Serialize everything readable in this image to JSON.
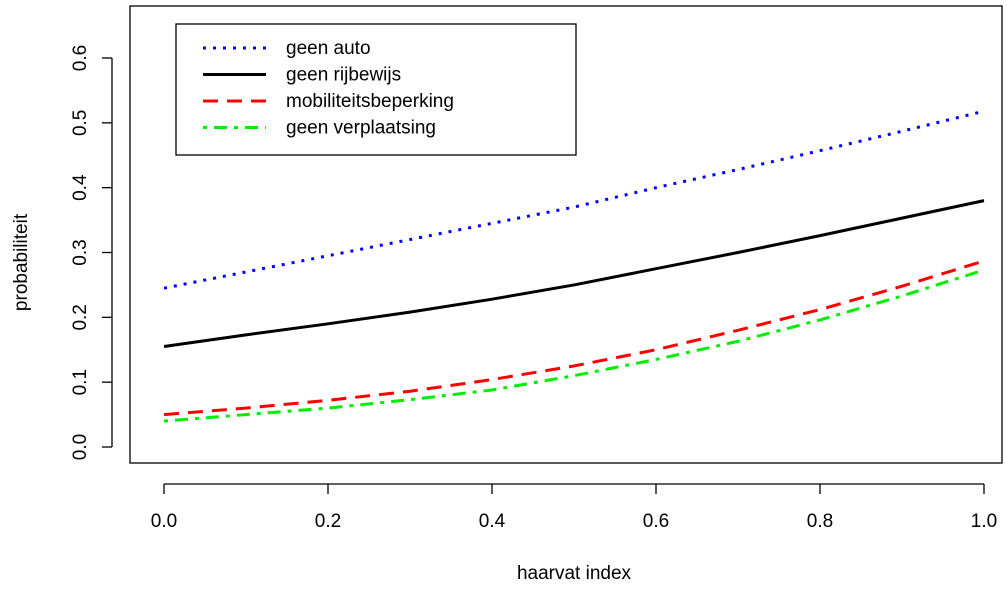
{
  "chart_data": {
    "type": "line",
    "title": "",
    "xlabel": "haarvat index",
    "ylabel": "probabiliteit",
    "xlim": [
      0.0,
      1.0
    ],
    "ylim": [
      0.0,
      0.6
    ],
    "x_ticks": [
      "0.0",
      "0.2",
      "0.4",
      "0.6",
      "0.8",
      "1.0"
    ],
    "y_ticks": [
      "0.0",
      "0.1",
      "0.2",
      "0.3",
      "0.4",
      "0.5",
      "0.6"
    ],
    "grid": false,
    "legend_position": "top-left",
    "x": [
      0.0,
      0.1,
      0.2,
      0.3,
      0.4,
      0.5,
      0.6,
      0.7,
      0.8,
      0.9,
      1.0
    ],
    "series": [
      {
        "name": "geen auto",
        "color": "#0000ff",
        "line_style": "dotted",
        "values": [
          0.245,
          0.27,
          0.295,
          0.32,
          0.345,
          0.37,
          0.4,
          0.428,
          0.457,
          0.487,
          0.518
        ]
      },
      {
        "name": "geen rijbewijs",
        "color": "#000000",
        "line_style": "solid",
        "values": [
          0.155,
          0.173,
          0.19,
          0.208,
          0.228,
          0.25,
          0.275,
          0.3,
          0.326,
          0.353,
          0.38
        ]
      },
      {
        "name": "mobiliteitsbeperking",
        "color": "#ff0000",
        "line_style": "dashed",
        "values": [
          0.05,
          0.06,
          0.072,
          0.086,
          0.104,
          0.125,
          0.15,
          0.18,
          0.212,
          0.248,
          0.287
        ]
      },
      {
        "name": "geen verplaatsing",
        "color": "#00ee00",
        "line_style": "dot-dash",
        "values": [
          0.04,
          0.05,
          0.06,
          0.073,
          0.088,
          0.11,
          0.135,
          0.163,
          0.196,
          0.233,
          0.273
        ]
      }
    ]
  }
}
